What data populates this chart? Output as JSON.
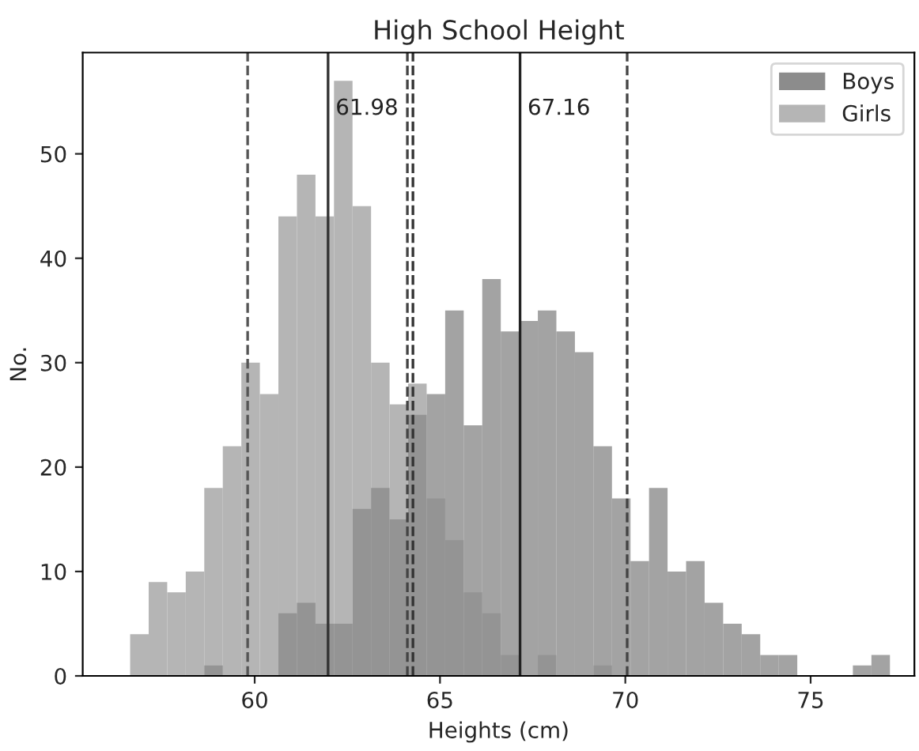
{
  "chart_data": {
    "type": "histogram",
    "title": "High School Height",
    "xlabel": "Heights (cm)",
    "ylabel": "No.",
    "series": [
      {
        "name": "Boys",
        "color": "#8c8c8c",
        "values": [
          0,
          0,
          0,
          0,
          1,
          0,
          0,
          0,
          6,
          7,
          5,
          5,
          16,
          18,
          15,
          25,
          27,
          35,
          24,
          38,
          33,
          34,
          35,
          33,
          31,
          22,
          17,
          11,
          18,
          10,
          11,
          7,
          5,
          4,
          2,
          2,
          0,
          0,
          0,
          1,
          2
        ]
      },
      {
        "name": "Girls",
        "color": "#b5b5b5",
        "values": [
          4,
          9,
          8,
          10,
          18,
          22,
          30,
          27,
          44,
          48,
          44,
          57,
          45,
          30,
          26,
          28,
          17,
          13,
          8,
          6,
          2,
          0,
          2,
          0,
          0,
          1,
          0,
          0,
          0,
          0,
          0,
          0,
          0,
          0,
          0,
          0,
          0,
          0,
          0,
          0,
          0
        ]
      }
    ],
    "bins": [
      56.64,
      57.14,
      57.64,
      58.14,
      58.64,
      59.14,
      59.64,
      60.14,
      60.64,
      61.14,
      61.64,
      62.14,
      62.64,
      63.14,
      63.64,
      64.14,
      64.64,
      65.14,
      65.64,
      66.14,
      66.64,
      67.14,
      67.64,
      68.14,
      68.64,
      69.14,
      69.64,
      70.14,
      70.64,
      71.14,
      71.64,
      72.14,
      72.64,
      73.14,
      73.64,
      74.14,
      74.64,
      75.14,
      75.64,
      76.14,
      76.64,
      77.14
    ],
    "ref_lines": [
      {
        "axis": "x",
        "value": 61.98,
        "label": "61.98",
        "color": "#333333",
        "line_style": "solid"
      },
      {
        "axis": "x",
        "value": 67.16,
        "label": "67.16",
        "color": "#222222",
        "line_style": "solid"
      },
      {
        "axis": "x",
        "value": 59.81,
        "color": "#555555",
        "line_style": "dashed"
      },
      {
        "axis": "x",
        "value": 64.12,
        "color": "#444444",
        "line_style": "dashed"
      },
      {
        "axis": "x",
        "value": 64.27,
        "color": "#333333",
        "line_style": "dashed"
      },
      {
        "axis": "x",
        "value": 70.05,
        "color": "#444444",
        "line_style": "dashed"
      }
    ],
    "xlim": [
      55.36,
      77.8
    ],
    "ylim": [
      0,
      59.7
    ],
    "xticks": [
      60,
      65,
      70,
      75
    ],
    "yticks": [
      0,
      10,
      20,
      30,
      40,
      50
    ],
    "grid": false,
    "legend": "top right"
  }
}
